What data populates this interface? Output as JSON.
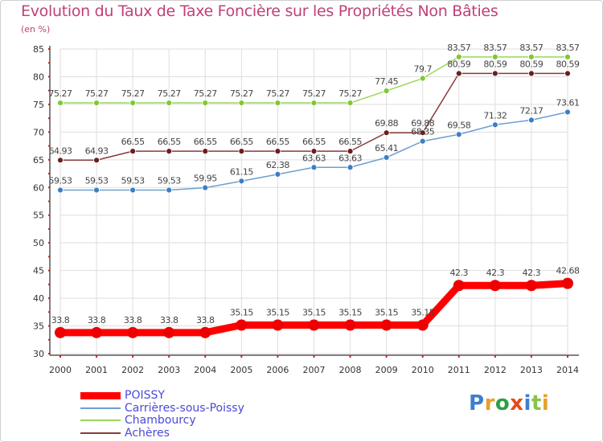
{
  "chart_data": {
    "type": "line",
    "title": "Evolution du Taux de Taxe Foncière sur les Propriétés Non Bâties",
    "subtitle": "(en %)",
    "categories": [
      "2000",
      "2001",
      "2002",
      "2003",
      "2004",
      "2005",
      "2006",
      "2007",
      "2008",
      "2009",
      "2010",
      "2011",
      "2012",
      "2013",
      "2014"
    ],
    "ylim": [
      30,
      85
    ],
    "yticks": [
      "30",
      "35",
      "40",
      "45",
      "50",
      "55",
      "60",
      "65",
      "70",
      "75",
      "80",
      "85"
    ],
    "grid": true,
    "series": [
      {
        "name": "Chambourcy",
        "color": "#99d659",
        "marker": "#7fc832",
        "width": 1.5,
        "radius": 3.5,
        "values": [
          75.27,
          75.27,
          75.27,
          75.27,
          75.27,
          75.27,
          75.27,
          75.27,
          75.27,
          77.45,
          79.7,
          83.57,
          83.57,
          83.57,
          83.57
        ],
        "labels": [
          "75.27",
          "75.27",
          "75.27",
          "75.27",
          "75.27",
          "75.27",
          "75.27",
          "75.27",
          "75.27",
          "77.45",
          "79.7",
          "83.57",
          "83.57",
          "83.57",
          "83.57"
        ]
      },
      {
        "name": "Achères",
        "color": "#8a3a3a",
        "marker": "#6a1f1f",
        "width": 1.5,
        "radius": 3.5,
        "values": [
          64.93,
          64.93,
          66.55,
          66.55,
          66.55,
          66.55,
          66.55,
          66.55,
          66.55,
          69.88,
          69.88,
          80.59,
          80.59,
          80.59,
          80.59
        ],
        "labels": [
          "64.93",
          "64.93",
          "66.55",
          "66.55",
          "66.55",
          "66.55",
          "66.55",
          "66.55",
          "66.55",
          "69.88",
          "69.88",
          "80.59",
          "80.59",
          "80.59",
          "80.59"
        ]
      },
      {
        "name": "Carrières-sous-Poissy",
        "color": "#6aa0d4",
        "marker": "#3d7ec4",
        "width": 1.5,
        "radius": 3.5,
        "values": [
          59.53,
          59.53,
          59.53,
          59.53,
          59.95,
          61.15,
          62.38,
          63.63,
          63.63,
          65.41,
          68.35,
          69.58,
          71.32,
          72.17,
          73.61
        ],
        "labels": [
          "59.53",
          "59.53",
          "59.53",
          "59.53",
          "59.95",
          "61.15",
          "62.38",
          "63.63",
          "63.63",
          "65.41",
          "68.35",
          "69.58",
          "71.32",
          "72.17",
          "73.61"
        ]
      },
      {
        "name": "POISSY",
        "color": "#ff0000",
        "marker": "#ee0000",
        "width": 9,
        "radius": 7,
        "values": [
          33.8,
          33.8,
          33.8,
          33.8,
          33.8,
          35.15,
          35.15,
          35.15,
          35.15,
          35.15,
          35.15,
          42.3,
          42.3,
          42.3,
          42.68
        ],
        "labels": [
          "33.8",
          "33.8",
          "33.8",
          "33.8",
          "33.8",
          "35.15",
          "35.15",
          "35.15",
          "35.15",
          "35.15",
          "35.15",
          "42.3",
          "42.3",
          "42.3",
          "42.68"
        ]
      }
    ],
    "legend": [
      "POISSY",
      "Carrières-sous-Poissy",
      "Chambourcy",
      "Achères"
    ],
    "legend_position": "bottom-left"
  },
  "legend": {
    "items": [
      {
        "label": "POISSY",
        "color": "#ff0000"
      },
      {
        "label": "Carrières-sous-Poissy",
        "color": "#6aa0d4"
      },
      {
        "label": "Chambourcy",
        "color": "#99d659"
      },
      {
        "label": "Achères",
        "color": "#8a3a3a"
      }
    ]
  },
  "logo": {
    "text": "Proxiti"
  }
}
